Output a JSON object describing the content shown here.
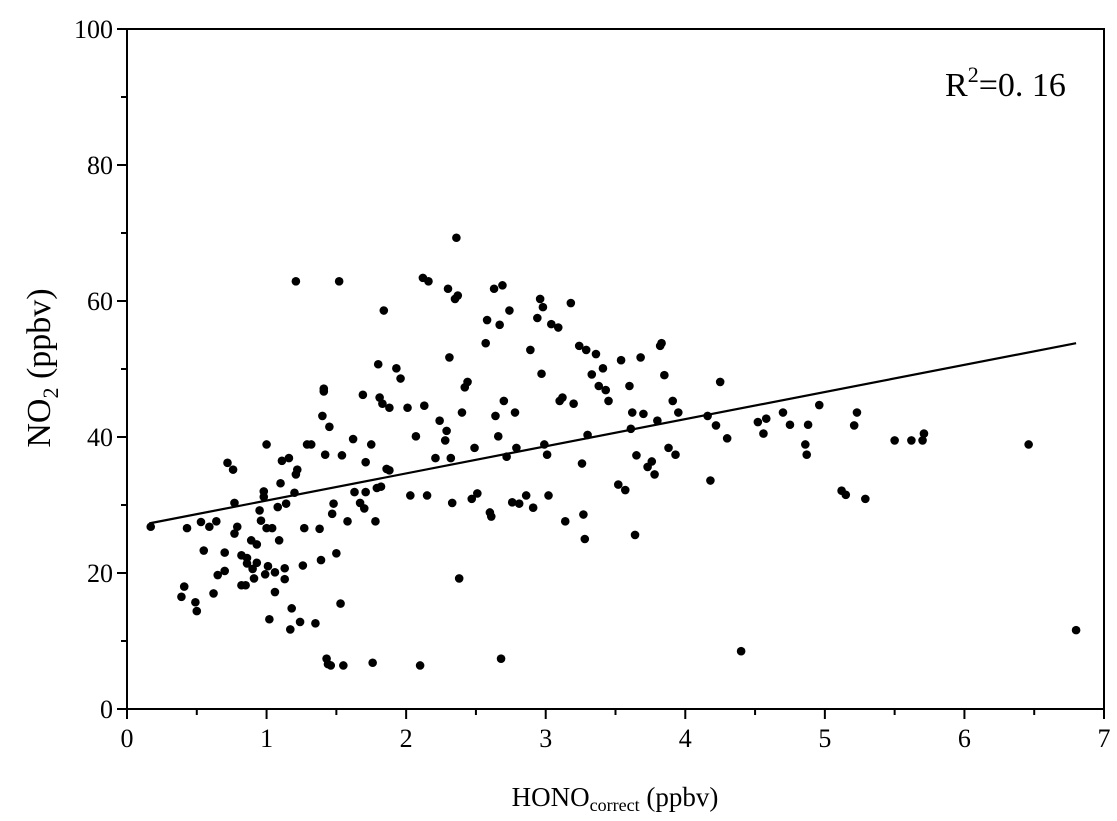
{
  "chart_data": {
    "type": "scatter",
    "x_label_main": "HONO",
    "x_label_sub": "correct",
    "x_label_unit": " (ppbv)",
    "y_label_main": "NO",
    "y_label_sub": "2",
    "y_label_unit": " (ppbv)",
    "annotation_main": "R",
    "annotation_sup": "2",
    "annotation_rest": "=0. 16",
    "xlim": [
      0,
      7
    ],
    "ylim": [
      0,
      100
    ],
    "x_ticks": [
      "0",
      "1",
      "2",
      "3",
      "4",
      "5",
      "6",
      "7"
    ],
    "y_ticks": [
      "0",
      "20",
      "40",
      "60",
      "80",
      "100"
    ],
    "fit_line": {
      "x": [
        0.16,
        6.8
      ],
      "y": [
        27.3,
        53.8
      ]
    },
    "points": [
      [
        0.17,
        26.8
      ],
      [
        0.39,
        16.5
      ],
      [
        0.41,
        18
      ],
      [
        0.43,
        26.6
      ],
      [
        0.49,
        15.7
      ],
      [
        0.5,
        14.4
      ],
      [
        0.53,
        27.5
      ],
      [
        0.55,
        23.3
      ],
      [
        0.59,
        26.8
      ],
      [
        0.62,
        17
      ],
      [
        0.64,
        27.6
      ],
      [
        0.65,
        19.7
      ],
      [
        0.7,
        23
      ],
      [
        0.7,
        20.3
      ],
      [
        0.72,
        36.2
      ],
      [
        0.76,
        35.2
      ],
      [
        0.77,
        30.3
      ],
      [
        0.77,
        25.8
      ],
      [
        0.79,
        26.8
      ],
      [
        0.82,
        18.2
      ],
      [
        0.82,
        22.6
      ],
      [
        0.85,
        18.2
      ],
      [
        0.86,
        21.4
      ],
      [
        0.86,
        22.2
      ],
      [
        0.89,
        24.8
      ],
      [
        0.9,
        20.6
      ],
      [
        0.91,
        19.2
      ],
      [
        0.93,
        21.5
      ],
      [
        0.93,
        24.2
      ],
      [
        0.95,
        29.2
      ],
      [
        0.96,
        27.7
      ],
      [
        0.98,
        31.2
      ],
      [
        0.98,
        32
      ],
      [
        0.99,
        19.8
      ],
      [
        1,
        38.9
      ],
      [
        1,
        26.6
      ],
      [
        1.01,
        21
      ],
      [
        1.02,
        13.2
      ],
      [
        1.04,
        26.6
      ],
      [
        1.06,
        20.1
      ],
      [
        1.06,
        17.2
      ],
      [
        1.08,
        29.7
      ],
      [
        1.09,
        24.8
      ],
      [
        1.1,
        33.2
      ],
      [
        1.11,
        36.5
      ],
      [
        1.13,
        19.1
      ],
      [
        1.13,
        20.7
      ],
      [
        1.14,
        30.2
      ],
      [
        1.16,
        36.9
      ],
      [
        1.17,
        11.7
      ],
      [
        1.18,
        14.8
      ],
      [
        1.2,
        31.8
      ],
      [
        1.21,
        34.5
      ],
      [
        1.21,
        62.9
      ],
      [
        1.22,
        35.2
      ],
      [
        1.24,
        12.8
      ],
      [
        1.26,
        21.1
      ],
      [
        1.27,
        26.6
      ],
      [
        1.29,
        38.9
      ],
      [
        1.32,
        38.9
      ],
      [
        1.35,
        12.6
      ],
      [
        1.38,
        26.5
      ],
      [
        1.39,
        21.9
      ],
      [
        1.4,
        43.1
      ],
      [
        1.41,
        47.1
      ],
      [
        1.41,
        46.7
      ],
      [
        1.42,
        37.4
      ],
      [
        1.43,
        7.4
      ],
      [
        1.44,
        6.6
      ],
      [
        1.45,
        41.5
      ],
      [
        1.46,
        6.4
      ],
      [
        1.47,
        28.7
      ],
      [
        1.48,
        30.2
      ],
      [
        1.5,
        22.9
      ],
      [
        1.52,
        62.9
      ],
      [
        1.53,
        15.5
      ],
      [
        1.54,
        37.3
      ],
      [
        1.55,
        6.4
      ],
      [
        1.58,
        27.6
      ],
      [
        1.62,
        39.7
      ],
      [
        1.63,
        31.9
      ],
      [
        1.67,
        30.3
      ],
      [
        1.69,
        46.2
      ],
      [
        1.7,
        29.5
      ],
      [
        1.71,
        31.9
      ],
      [
        1.71,
        36.3
      ],
      [
        1.75,
        38.9
      ],
      [
        1.76,
        6.8
      ],
      [
        1.78,
        27.6
      ],
      [
        1.79,
        32.5
      ],
      [
        1.8,
        50.7
      ],
      [
        1.81,
        45.8
      ],
      [
        1.82,
        32.7
      ],
      [
        1.83,
        44.9
      ],
      [
        1.84,
        58.6
      ],
      [
        1.86,
        35.3
      ],
      [
        1.88,
        44.3
      ],
      [
        1.88,
        35.1
      ],
      [
        1.93,
        50.1
      ],
      [
        1.96,
        48.6
      ],
      [
        2.01,
        44.3
      ],
      [
        2.03,
        31.4
      ],
      [
        2.07,
        40.1
      ],
      [
        2.1,
        6.4
      ],
      [
        2.12,
        63.4
      ],
      [
        2.13,
        44.6
      ],
      [
        2.15,
        31.4
      ],
      [
        2.16,
        62.9
      ],
      [
        2.21,
        36.9
      ],
      [
        2.24,
        42.4
      ],
      [
        2.28,
        39.5
      ],
      [
        2.29,
        40.9
      ],
      [
        2.3,
        61.8
      ],
      [
        2.31,
        51.7
      ],
      [
        2.32,
        36.9
      ],
      [
        2.33,
        30.3
      ],
      [
        2.35,
        60.3
      ],
      [
        2.36,
        69.3
      ],
      [
        2.37,
        60.8
      ],
      [
        2.38,
        19.2
      ],
      [
        2.4,
        43.6
      ],
      [
        2.42,
        47.3
      ],
      [
        2.44,
        48.1
      ],
      [
        2.47,
        30.9
      ],
      [
        2.49,
        38.4
      ],
      [
        2.51,
        31.7
      ],
      [
        2.57,
        53.8
      ],
      [
        2.58,
        57.2
      ],
      [
        2.6,
        28.9
      ],
      [
        2.61,
        28.3
      ],
      [
        2.63,
        61.8
      ],
      [
        2.64,
        43.1
      ],
      [
        2.66,
        40.1
      ],
      [
        2.67,
        56.5
      ],
      [
        2.68,
        7.4
      ],
      [
        2.69,
        62.3
      ],
      [
        2.7,
        45.3
      ],
      [
        2.72,
        37.1
      ],
      [
        2.74,
        58.6
      ],
      [
        2.76,
        30.4
      ],
      [
        2.78,
        43.6
      ],
      [
        2.79,
        38.4
      ],
      [
        2.81,
        30.2
      ],
      [
        2.86,
        31.4
      ],
      [
        2.89,
        52.8
      ],
      [
        2.91,
        29.6
      ],
      [
        2.94,
        57.5
      ],
      [
        2.96,
        60.3
      ],
      [
        2.97,
        49.3
      ],
      [
        2.98,
        59.1
      ],
      [
        2.99,
        38.9
      ],
      [
        3.01,
        37.4
      ],
      [
        3.02,
        31.4
      ],
      [
        3.04,
        56.6
      ],
      [
        3.09,
        56.1
      ],
      [
        3.1,
        45.3
      ],
      [
        3.12,
        45.8
      ],
      [
        3.14,
        27.6
      ],
      [
        3.18,
        59.7
      ],
      [
        3.2,
        44.9
      ],
      [
        3.24,
        53.4
      ],
      [
        3.26,
        36.1
      ],
      [
        3.27,
        28.6
      ],
      [
        3.28,
        25
      ],
      [
        3.29,
        52.8
      ],
      [
        3.3,
        40.3
      ],
      [
        3.33,
        49.2
      ],
      [
        3.36,
        52.2
      ],
      [
        3.38,
        47.5
      ],
      [
        3.41,
        50.1
      ],
      [
        3.43,
        46.9
      ],
      [
        3.45,
        45.3
      ],
      [
        3.52,
        33
      ],
      [
        3.54,
        51.3
      ],
      [
        3.57,
        32.2
      ],
      [
        3.6,
        47.5
      ],
      [
        3.61,
        41.2
      ],
      [
        3.62,
        43.6
      ],
      [
        3.64,
        25.6
      ],
      [
        3.65,
        37.3
      ],
      [
        3.68,
        51.7
      ],
      [
        3.7,
        43.4
      ],
      [
        3.73,
        35.6
      ],
      [
        3.76,
        36.4
      ],
      [
        3.78,
        34.5
      ],
      [
        3.8,
        42.4
      ],
      [
        3.82,
        53.4
      ],
      [
        3.83,
        53.8
      ],
      [
        3.85,
        49.1
      ],
      [
        3.88,
        38.4
      ],
      [
        3.91,
        45.3
      ],
      [
        3.93,
        37.4
      ],
      [
        3.95,
        43.6
      ],
      [
        4.16,
        43.1
      ],
      [
        4.18,
        33.6
      ],
      [
        4.22,
        41.7
      ],
      [
        4.25,
        48.1
      ],
      [
        4.3,
        39.8
      ],
      [
        4.4,
        8.5
      ],
      [
        4.52,
        42.2
      ],
      [
        4.56,
        40.5
      ],
      [
        4.58,
        42.7
      ],
      [
        4.7,
        43.6
      ],
      [
        4.75,
        41.8
      ],
      [
        4.86,
        38.9
      ],
      [
        4.87,
        37.4
      ],
      [
        4.88,
        41.8
      ],
      [
        4.96,
        44.7
      ],
      [
        5.12,
        32.1
      ],
      [
        5.15,
        31.5
      ],
      [
        5.21,
        41.7
      ],
      [
        5.23,
        43.6
      ],
      [
        5.29,
        30.9
      ],
      [
        5.5,
        39.5
      ],
      [
        5.62,
        39.5
      ],
      [
        5.7,
        39.5
      ],
      [
        5.71,
        40.5
      ],
      [
        6.46,
        38.9
      ],
      [
        6.8,
        11.6
      ]
    ]
  }
}
